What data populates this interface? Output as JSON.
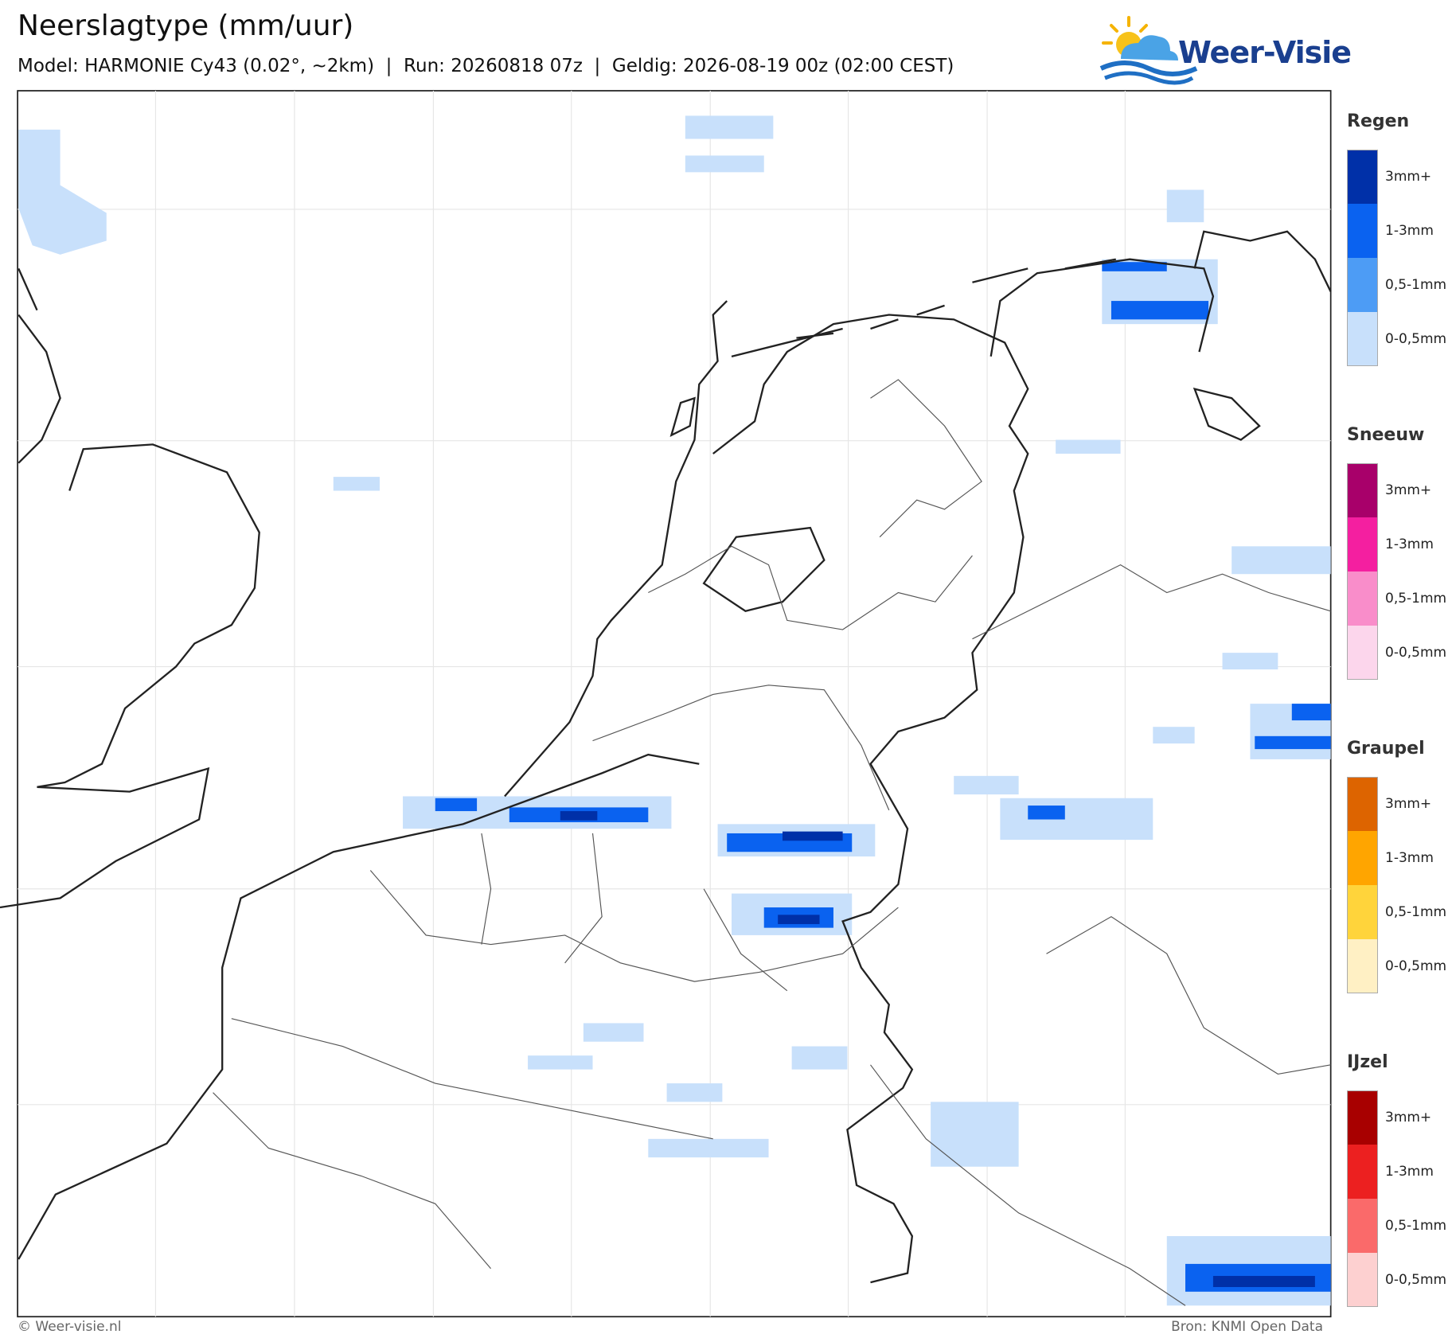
{
  "header": {
    "title": "Neerslagtype (mm/uur)",
    "subtitle": "Model: HARMONIE Cy43 (0.02°, ~2km)  |  Run: 20260818 07z  |  Geldig: 2026-08-19 00z (02:00 CEST)",
    "logo": "Weer-Visie"
  },
  "legend": [
    {
      "title": "Regen",
      "items": [
        {
          "label": "3mm+",
          "color": "#0030a8"
        },
        {
          "label": "1-3mm",
          "color": "#0a62f0"
        },
        {
          "label": "0,5-1mm",
          "color": "#4d9cf5"
        },
        {
          "label": "0-0,5mm",
          "color": "#c8e0fb"
        }
      ]
    },
    {
      "title": "Sneeuw",
      "items": [
        {
          "label": "3mm+",
          "color": "#a8006a"
        },
        {
          "label": "1-3mm",
          "color": "#f41fa0"
        },
        {
          "label": "0,5-1mm",
          "color": "#f98dca"
        },
        {
          "label": "0-0,5mm",
          "color": "#fcd6ec"
        }
      ]
    },
    {
      "title": "Graupel",
      "items": [
        {
          "label": "3mm+",
          "color": "#dd6400"
        },
        {
          "label": "1-3mm",
          "color": "#ffa500"
        },
        {
          "label": "0,5-1mm",
          "color": "#ffd43b"
        },
        {
          "label": "0-0,5mm",
          "color": "#fff0c4"
        }
      ]
    },
    {
      "title": "IJzel",
      "items": [
        {
          "label": "3mm+",
          "color": "#a80000"
        },
        {
          "label": "1-3mm",
          "color": "#ec2020"
        },
        {
          "label": "0,5-1mm",
          "color": "#fa6a6a"
        },
        {
          "label": "0-0,5mm",
          "color": "#fdd0d0"
        }
      ]
    }
  ],
  "footer": {
    "left": "© Weer-visie.nl",
    "right": "Bron: KNMI Open Data"
  }
}
